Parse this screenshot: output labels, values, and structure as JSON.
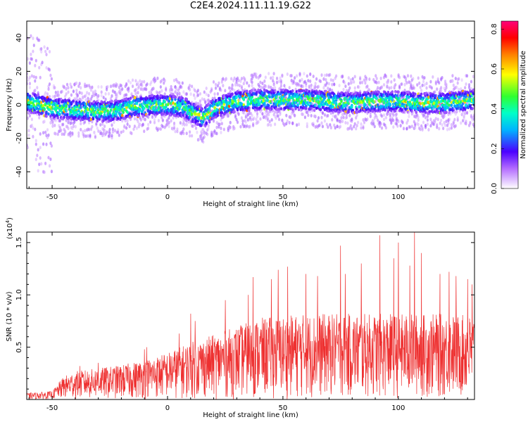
{
  "title": "C2E4.2024.111.11.19.G22",
  "chart_data": [
    {
      "type": "heatmap",
      "xlabel": "Height of straight line (km)",
      "ylabel": "Frequency (Hz)",
      "xlim": [
        -61,
        133
      ],
      "ylim": [
        -50,
        50
      ],
      "x_ticks": [
        -50,
        0,
        50,
        100
      ],
      "y_ticks": [
        -40,
        -20,
        0,
        20,
        40
      ],
      "grid": false,
      "colorbar": {
        "label": "Normalized spectral amplitude",
        "range": [
          0,
          0.84
        ],
        "ticks": [
          "0.0",
          "0.2",
          "0.4",
          "0.6",
          "0.8"
        ]
      },
      "band_center_hz": [
        [
          -61,
          2
        ],
        [
          -50,
          -2
        ],
        [
          -40,
          -3
        ],
        [
          -30,
          -4
        ],
        [
          -25,
          -4
        ],
        [
          -20,
          -3
        ],
        [
          -15,
          -1
        ],
        [
          -10,
          -1
        ],
        [
          -5,
          0
        ],
        [
          0,
          0
        ],
        [
          5,
          -1
        ],
        [
          8,
          -2
        ],
        [
          10,
          -4
        ],
        [
          13,
          -6
        ],
        [
          15,
          -8
        ],
        [
          18,
          -5
        ],
        [
          20,
          -2
        ],
        [
          25,
          0
        ],
        [
          30,
          2
        ],
        [
          40,
          3
        ],
        [
          50,
          3
        ],
        [
          60,
          3
        ],
        [
          70,
          2
        ],
        [
          80,
          1
        ],
        [
          90,
          2
        ],
        [
          100,
          2
        ],
        [
          110,
          1
        ],
        [
          120,
          1
        ],
        [
          133,
          3
        ]
      ],
      "band_halfwidth_hz": 6
    },
    {
      "type": "line",
      "xlabel": "Height of straight line (km)",
      "ylabel": "SNR (10 * v/v)",
      "y_multiplier": "(x10",
      "y_multiplier_exp": "4",
      "y_multiplier_close": ")",
      "xlim": [
        -61,
        133
      ],
      "ylim": [
        0,
        1.6
      ],
      "x_ticks": [
        -50,
        0,
        50,
        100
      ],
      "y_ticks": [
        "0.5",
        "1.0",
        "1.5"
      ],
      "color": "#ee3030",
      "grid": false,
      "envelope": {
        "x": [
          -61,
          -50,
          -45,
          -40,
          -30,
          -20,
          -10,
          0,
          10,
          20,
          30,
          40,
          50,
          60,
          70,
          80,
          90,
          100,
          110,
          120,
          133
        ],
        "typical_max": [
          0.06,
          0.08,
          0.22,
          0.27,
          0.3,
          0.33,
          0.38,
          0.45,
          0.55,
          0.62,
          0.7,
          0.78,
          0.8,
          0.82,
          0.82,
          0.82,
          0.82,
          0.82,
          0.82,
          0.82,
          0.8
        ]
      },
      "peaks": [
        [
          -38,
          0.32
        ],
        [
          -30,
          0.35
        ],
        [
          -10,
          0.48
        ],
        [
          -9,
          0.5
        ],
        [
          5,
          0.63
        ],
        [
          10,
          0.82
        ],
        [
          12,
          0.75
        ],
        [
          25,
          0.95
        ],
        [
          35,
          1.0
        ],
        [
          37,
          1.17
        ],
        [
          45,
          1.15
        ],
        [
          48,
          1.24
        ],
        [
          52,
          1.27
        ],
        [
          60,
          1.2
        ],
        [
          65,
          1.18
        ],
        [
          75,
          1.47
        ],
        [
          77,
          1.2
        ],
        [
          84,
          1.3
        ],
        [
          92,
          1.57
        ],
        [
          98,
          1.35
        ],
        [
          100,
          1.5
        ],
        [
          105,
          1.28
        ],
        [
          107,
          1.6
        ],
        [
          110,
          1.4
        ],
        [
          118,
          1.2
        ],
        [
          122,
          1.22
        ],
        [
          125,
          1.18
        ],
        [
          130,
          1.15
        ],
        [
          132,
          1.1
        ]
      ]
    }
  ]
}
